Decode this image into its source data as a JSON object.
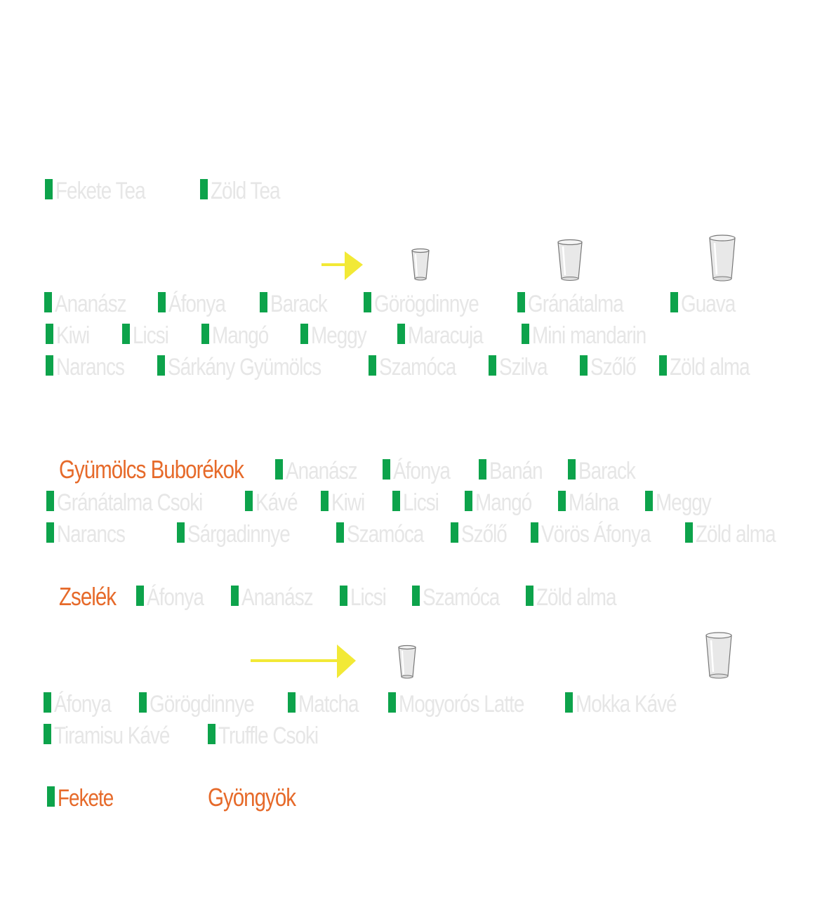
{
  "colors": {
    "marker": "#0da34b",
    "item_text": "#e6e6e6",
    "heading": "#e66a2a",
    "arrow": "#f2e936"
  },
  "icons": {
    "arrow": "right-arrow-icon",
    "cup": "cup-icon"
  },
  "tea": {
    "items": [
      "Fekete Tea",
      "Zöld Tea"
    ]
  },
  "fruit_flavors": {
    "rows": [
      [
        "Ananász",
        "Áfonya",
        "Barack",
        "Görögdinnye",
        "Gránátalma",
        "Guava"
      ],
      [
        "Kiwi",
        "Licsi",
        "Mangó",
        "Meggy",
        "Maracuja",
        "Mini mandarin"
      ],
      [
        "Narancs",
        "Sárkány Gyümölcs",
        "Szamóca",
        "Szilva",
        "Szőlő",
        "Zöld alma"
      ]
    ]
  },
  "bubbles": {
    "heading": "Gyümölcs Buborékok",
    "rows": [
      [
        "Ananász",
        "Áfonya",
        "Banán",
        "Barack"
      ],
      [
        "Gránátalma Csoki",
        "Kávé",
        "Kiwi",
        "Licsi",
        "Mangó",
        "Málna",
        "Meggy"
      ],
      [
        "Narancs",
        "Sárgadinnye",
        "Szamóca",
        "Szőlő",
        "Vörös Áfonya",
        "Zöld alma"
      ]
    ]
  },
  "jelly": {
    "heading": "Zselék",
    "items": [
      "Áfonya",
      "Ananász",
      "Licsi",
      "Szamóca",
      "Zöld alma"
    ]
  },
  "milk_flavors": {
    "rows": [
      [
        "Áfonya",
        "Görögdinnye",
        "Matcha",
        "Mogyorós Latte",
        "Mokka Kávé"
      ],
      [
        "Tiramisu Kávé",
        "Truffle Csoki"
      ]
    ]
  },
  "pearls": {
    "option": "Fekete",
    "heading": "Gyöngyök"
  }
}
